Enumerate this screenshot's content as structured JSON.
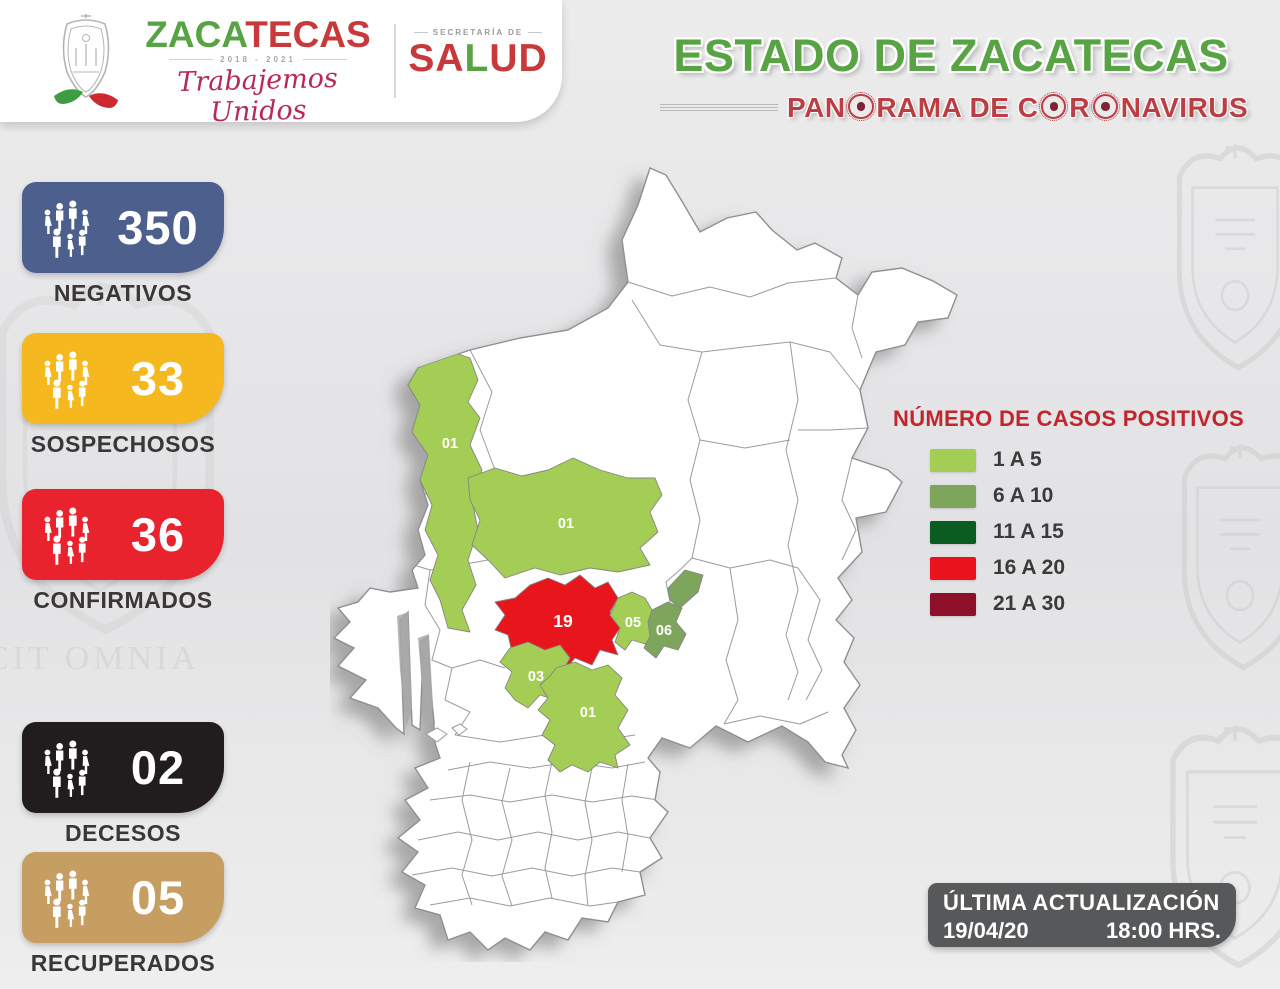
{
  "header": {
    "brand": {
      "wordmark_green": "ZACA",
      "wordmark_red": "TECAS",
      "years": "2018 - 2021",
      "slogan": "Trabajemos Unidos",
      "secretaria_label": "SECRETARÍA DE",
      "salud_pre": "SA",
      "salud_mid": "L",
      "salud_post": "UD"
    },
    "title": "ESTADO DE ZACATECAS",
    "subtitle": "PANORAMA DE CORONAVIRUS"
  },
  "stats": [
    {
      "value": "350",
      "label": "NEGATIVOS",
      "color": "#4d5f8c"
    },
    {
      "value": "33",
      "label": "SOSPECHOSOS",
      "color": "#f5b81e"
    },
    {
      "value": "36",
      "label": "CONFIRMADOS",
      "color": "#e8232e"
    },
    {
      "value": "02",
      "label": "DECESOS",
      "color": "#211d1e"
    },
    {
      "value": "05",
      "label": "RECUPERADOS",
      "color": "#c79e62"
    }
  ],
  "legend": {
    "title": "NÚMERO DE CASOS POSITIVOS",
    "items": [
      {
        "label": "1 A 5",
        "color": "#a4cd55"
      },
      {
        "label": "6 A 10",
        "color": "#7ea55c"
      },
      {
        "label": "11 A 15",
        "color": "#0a5c20"
      },
      {
        "label": "16 A 20",
        "color": "#e8131d"
      },
      {
        "label": "21 A 30",
        "color": "#8e0f2a"
      }
    ]
  },
  "map": {
    "regions": [
      {
        "area": "northwest",
        "label": "01",
        "color": "#a4cd55"
      },
      {
        "area": "center",
        "label": "01",
        "color": "#a4cd55"
      },
      {
        "area": "capital",
        "label": "19",
        "color": "#e8131d"
      },
      {
        "area": "east-of-capital",
        "label": "05",
        "color": "#a4cd55"
      },
      {
        "area": "east",
        "label": "06",
        "color": "#7ea55c"
      },
      {
        "area": "northeast-spur",
        "label": "",
        "color": "#7ea55c"
      },
      {
        "area": "southwest-of-capital",
        "label": "03",
        "color": "#a4cd55"
      },
      {
        "area": "south",
        "label": "01",
        "color": "#a4cd55"
      }
    ]
  },
  "footer": {
    "update_label": "ÚLTIMA ACTUALIZACIÓN",
    "date": "19/04/20",
    "time": "18:00 HRS."
  },
  "watermark": {
    "motto": "CIT OMNIA"
  },
  "colors": {
    "title_green": "#58a445",
    "subtitle_red": "#bb3e44",
    "legend_title_red": "#c0262c",
    "footer_bg": "#57585a"
  }
}
